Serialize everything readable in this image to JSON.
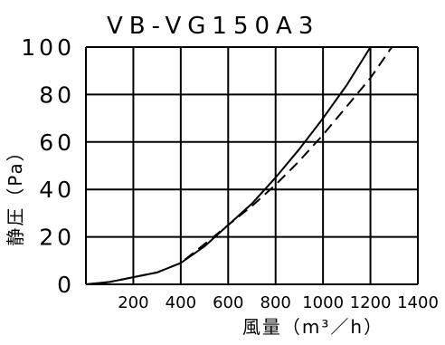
{
  "chart_data": {
    "type": "line",
    "title": "VB-VG150A3",
    "xlabel": "風量（m³／h）",
    "ylabel": "静圧（Pa）",
    "xlim": [
      0,
      1400
    ],
    "ylim": [
      0,
      100
    ],
    "x_ticks": [
      "200",
      "400",
      "600",
      "800",
      "1000",
      "1200",
      "1400"
    ],
    "y_ticks": [
      "100",
      "80",
      "60",
      "40",
      "20",
      "0"
    ],
    "grid": true,
    "series": [
      {
        "style": "solid",
        "x": [
          0,
          100,
          200,
          300,
          400,
          500,
          600,
          700,
          800,
          900,
          1000,
          1100,
          1200
        ],
        "y": [
          0,
          1,
          3,
          5,
          9,
          16,
          25,
          34,
          45,
          57,
          70,
          84,
          100
        ]
      },
      {
        "style": "dashed",
        "x": [
          0,
          100,
          200,
          300,
          400,
          500,
          600,
          700,
          800,
          900,
          1000,
          1100,
          1200,
          1290
        ],
        "y": [
          0,
          1,
          3,
          5,
          9,
          17,
          25,
          33,
          42,
          52,
          63,
          75,
          87,
          100
        ]
      }
    ]
  }
}
